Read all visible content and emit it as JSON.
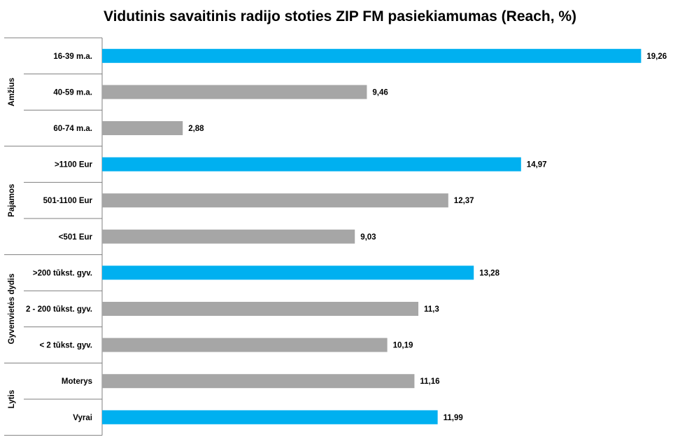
{
  "chart_data": {
    "type": "bar",
    "orientation": "horizontal",
    "title": "Vidutinis savaitinis radijo stoties ZIP FM pasiekiamumas (Reach, %)",
    "xlim": [
      0,
      20
    ],
    "grid": false,
    "legend": "none",
    "groups": [
      {
        "name": "Amžius",
        "categories": [
          "16-39 m.a.",
          "40-59 m.a.",
          "60-74 m.a."
        ],
        "values": [
          19.26,
          9.46,
          2.88
        ],
        "value_labels": [
          "19,26",
          "9,46",
          "2,88"
        ],
        "highlight": [
          true,
          false,
          false
        ]
      },
      {
        "name": "Pajamos",
        "categories": [
          ">1100 Eur",
          "501-1100 Eur",
          "<501 Eur"
        ],
        "values": [
          14.97,
          12.37,
          9.03
        ],
        "value_labels": [
          "14,97",
          "12,37",
          "9,03"
        ],
        "highlight": [
          true,
          false,
          false
        ]
      },
      {
        "name": "Gyvenvietės dydis",
        "categories": [
          ">200 tūkst. gyv.",
          "2 - 200 tūkst. gyv.",
          "< 2 tūkst. gyv."
        ],
        "values": [
          13.28,
          11.3,
          10.19
        ],
        "value_labels": [
          "13,28",
          "11,3",
          "10,19"
        ],
        "highlight": [
          true,
          false,
          false
        ]
      },
      {
        "name": "Lytis",
        "categories": [
          "Moterys",
          "Vyrai"
        ],
        "values": [
          11.16,
          11.99
        ],
        "value_labels": [
          "11,16",
          "11,99"
        ],
        "highlight": [
          false,
          true
        ]
      }
    ]
  },
  "colors": {
    "highlight": "#00b0f0",
    "default": "#a6a6a6",
    "axis": "#7f7f7f"
  }
}
